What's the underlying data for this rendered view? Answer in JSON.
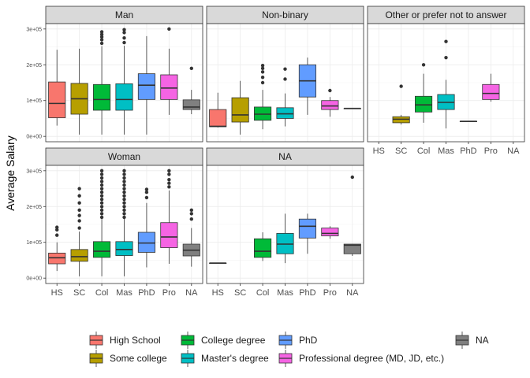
{
  "chart_data": {
    "type": "box",
    "ylabel": "Average Salary",
    "xlabel": "",
    "y_tick_labels": [
      "0e+00",
      "1e+05",
      "2e+05",
      "3e+05"
    ],
    "y_ticks": [
      0,
      100000,
      200000,
      300000
    ],
    "ylim": [
      -15000,
      315000
    ],
    "x_tick_labels": [
      "HS",
      "SC",
      "Col",
      "Mas",
      "PhD",
      "Pro",
      "NA"
    ],
    "category_colors": [
      "#F8766D",
      "#B79F00",
      "#00BA38",
      "#00BFC4",
      "#619CFF",
      "#F564E3",
      "#808080"
    ],
    "legend": {
      "position": "bottom",
      "entries": [
        {
          "label": "High School",
          "color": "#F8766D"
        },
        {
          "label": "Some college",
          "color": "#B79F00"
        },
        {
          "label": "College degree",
          "color": "#00BA38"
        },
        {
          "label": "Master's degree",
          "color": "#00BFC4"
        },
        {
          "label": "PhD",
          "color": "#619CFF"
        },
        {
          "label": "Professional degree (MD, JD, etc.)",
          "color": "#F564E3"
        },
        {
          "label": "NA",
          "color": "#808080"
        }
      ]
    },
    "panels": [
      {
        "label": "Man",
        "boxes": [
          {
            "cat": 0,
            "wlo": 30000,
            "q1": 52000,
            "med": 92000,
            "q3": 152000,
            "whi": 242000,
            "out": []
          },
          {
            "cat": 1,
            "wlo": 5000,
            "q1": 62000,
            "med": 105000,
            "q3": 148000,
            "whi": 245000,
            "out": []
          },
          {
            "cat": 2,
            "wlo": 5000,
            "q1": 73000,
            "med": 103000,
            "q3": 145000,
            "whi": 252000,
            "out": [
              260000,
              270000,
              278000,
              285000,
              292000
            ]
          },
          {
            "cat": 3,
            "wlo": 5000,
            "q1": 73000,
            "med": 103000,
            "q3": 147000,
            "whi": 253000,
            "out": [
              262000,
              275000,
              290000,
              298000
            ]
          },
          {
            "cat": 4,
            "wlo": 5000,
            "q1": 103000,
            "med": 143000,
            "q3": 175000,
            "whi": 280000,
            "out": []
          },
          {
            "cat": 5,
            "wlo": 60000,
            "q1": 103000,
            "med": 135000,
            "q3": 172000,
            "whi": 245000,
            "out": [
              300000
            ]
          },
          {
            "cat": 6,
            "wlo": 62000,
            "q1": 75000,
            "med": 82000,
            "q3": 102000,
            "whi": 130000,
            "out": [
              190000
            ]
          }
        ]
      },
      {
        "label": "Non-binary",
        "boxes": [
          {
            "cat": 0,
            "wlo": 25000,
            "q1": 27000,
            "med": 28000,
            "q3": 75000,
            "whi": 122000,
            "out": []
          },
          {
            "cat": 1,
            "wlo": 5000,
            "q1": 40000,
            "med": 60000,
            "q3": 108000,
            "whi": 155000,
            "out": []
          },
          {
            "cat": 2,
            "wlo": 20000,
            "q1": 45000,
            "med": 62000,
            "q3": 82000,
            "whi": 130000,
            "out": [
              150000,
              165000,
              180000,
              190000,
              198000
            ]
          },
          {
            "cat": 3,
            "wlo": 28000,
            "q1": 50000,
            "med": 63000,
            "q3": 80000,
            "whi": 120000,
            "out": [
              160000,
              188000
            ]
          },
          {
            "cat": 4,
            "wlo": 60000,
            "q1": 110000,
            "med": 155000,
            "q3": 200000,
            "whi": 220000,
            "out": []
          },
          {
            "cat": 5,
            "wlo": 55000,
            "q1": 75000,
            "med": 85000,
            "q3": 100000,
            "whi": 110000,
            "out": [
              128000
            ]
          },
          {
            "cat": 6,
            "wlo": 78000,
            "q1": 78000,
            "med": 78000,
            "q3": 78000,
            "whi": 78000,
            "out": []
          }
        ]
      },
      {
        "label": "Other or prefer not to answer",
        "boxes": [
          {
            "cat": 1,
            "wlo": 33000,
            "q1": 38000,
            "med": 48000,
            "q3": 55000,
            "whi": 60000,
            "out": [
              140000
            ]
          },
          {
            "cat": 2,
            "wlo": 38000,
            "q1": 68000,
            "med": 88000,
            "q3": 112000,
            "whi": 175000,
            "out": [
              200000
            ]
          },
          {
            "cat": 3,
            "wlo": 22000,
            "q1": 75000,
            "med": 95000,
            "q3": 117000,
            "whi": 158000,
            "out": [
              220000,
              265000
            ]
          },
          {
            "cat": 4,
            "wlo": 42000,
            "q1": 42000,
            "med": 42000,
            "q3": 42000,
            "whi": 42000,
            "out": []
          },
          {
            "cat": 5,
            "wlo": 97000,
            "q1": 103000,
            "med": 120000,
            "q3": 145000,
            "whi": 175000,
            "out": []
          }
        ]
      },
      {
        "label": "Woman",
        "boxes": [
          {
            "cat": 0,
            "wlo": 20000,
            "q1": 40000,
            "med": 57000,
            "q3": 70000,
            "whi": 100000,
            "out": [
              120000,
              135000,
              142000
            ]
          },
          {
            "cat": 1,
            "wlo": 5000,
            "q1": 47000,
            "med": 60000,
            "q3": 80000,
            "whi": 130000,
            "out": [
              140000,
              160000,
              175000,
              190000,
              210000,
              230000,
              250000
            ]
          },
          {
            "cat": 2,
            "wlo": 5000,
            "q1": 58000,
            "med": 75000,
            "q3": 102000,
            "whi": 165000,
            "out": [
              170000,
              180000,
              190000,
              200000,
              210000,
              220000,
              230000,
              240000,
              250000,
              260000,
              270000,
              280000,
              290000,
              300000
            ]
          },
          {
            "cat": 3,
            "wlo": 5000,
            "q1": 63000,
            "med": 80000,
            "q3": 102000,
            "whi": 165000,
            "out": [
              170000,
              180000,
              190000,
              200000,
              210000,
              220000,
              230000,
              240000,
              250000,
              260000,
              270000,
              280000,
              290000,
              300000
            ]
          },
          {
            "cat": 4,
            "wlo": 30000,
            "q1": 72000,
            "med": 98000,
            "q3": 128000,
            "whi": 210000,
            "out": [
              225000,
              240000,
              248000
            ]
          },
          {
            "cat": 5,
            "wlo": 40000,
            "q1": 85000,
            "med": 115000,
            "q3": 155000,
            "whi": 245000,
            "out": [
              255000,
              265000,
              275000,
              290000,
              300000
            ]
          },
          {
            "cat": 6,
            "wlo": 32000,
            "q1": 62000,
            "med": 78000,
            "q3": 95000,
            "whi": 140000,
            "out": [
              165000,
              180000,
              190000
            ]
          }
        ]
      },
      {
        "label": "NA",
        "boxes": [
          {
            "cat": 0,
            "wlo": 42000,
            "q1": 42000,
            "med": 42000,
            "q3": 42000,
            "whi": 42000,
            "out": []
          },
          {
            "cat": 2,
            "wlo": 48000,
            "q1": 58000,
            "med": 75000,
            "q3": 110000,
            "whi": 128000,
            "out": []
          },
          {
            "cat": 3,
            "wlo": 42000,
            "q1": 68000,
            "med": 95000,
            "q3": 125000,
            "whi": 180000,
            "out": []
          },
          {
            "cat": 4,
            "wlo": 68000,
            "q1": 112000,
            "med": 145000,
            "q3": 165000,
            "whi": 180000,
            "out": []
          },
          {
            "cat": 5,
            "wlo": 110000,
            "q1": 118000,
            "med": 125000,
            "q3": 140000,
            "whi": 145000,
            "out": []
          },
          {
            "cat": 6,
            "wlo": 62000,
            "q1": 68000,
            "med": 92000,
            "q3": 95000,
            "whi": 95000,
            "out": [
              282000
            ]
          }
        ]
      }
    ]
  }
}
